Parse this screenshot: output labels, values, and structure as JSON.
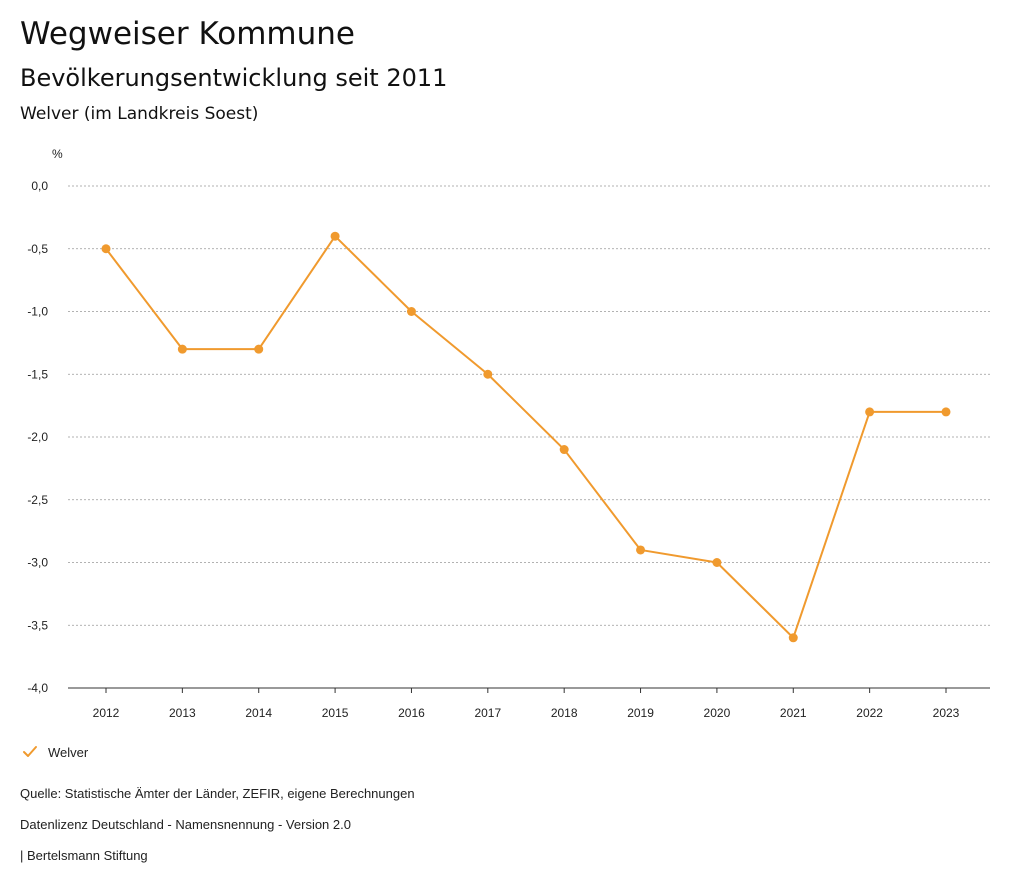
{
  "header": {
    "title": "Wegweiser Kommune",
    "subtitle": "Bevölkerungsentwicklung seit 2011",
    "region": "Welver (im Landkreis Soest)"
  },
  "legend": {
    "label": "Welver",
    "icon": "check-icon"
  },
  "footer": {
    "source": "Quelle: Statistische Ämter der Länder, ZEFIR, eigene Berechnungen",
    "license": "Datenlizenz Deutschland - Namensnennung - Version 2.0",
    "publisher": "| Bertelsmann Stiftung"
  },
  "colors": {
    "series": "#F09A2E",
    "grid": "#999999",
    "axis": "#333333"
  },
  "chart_data": {
    "type": "line",
    "title": "Bevölkerungsentwicklung seit 2011",
    "ylabel": "%",
    "xlabel": "",
    "ylim": [
      -4.0,
      0.0
    ],
    "ystep": 0.5,
    "grid": true,
    "legend_position": "bottom-left",
    "categories": [
      "2012",
      "2013",
      "2014",
      "2015",
      "2016",
      "2017",
      "2018",
      "2019",
      "2020",
      "2021",
      "2022",
      "2023"
    ],
    "series": [
      {
        "name": "Welver",
        "values": [
          -0.5,
          -1.3,
          -1.3,
          -0.4,
          -1.0,
          -1.5,
          -2.1,
          -2.9,
          -3.0,
          -3.6,
          -1.8,
          -1.8
        ]
      }
    ]
  }
}
